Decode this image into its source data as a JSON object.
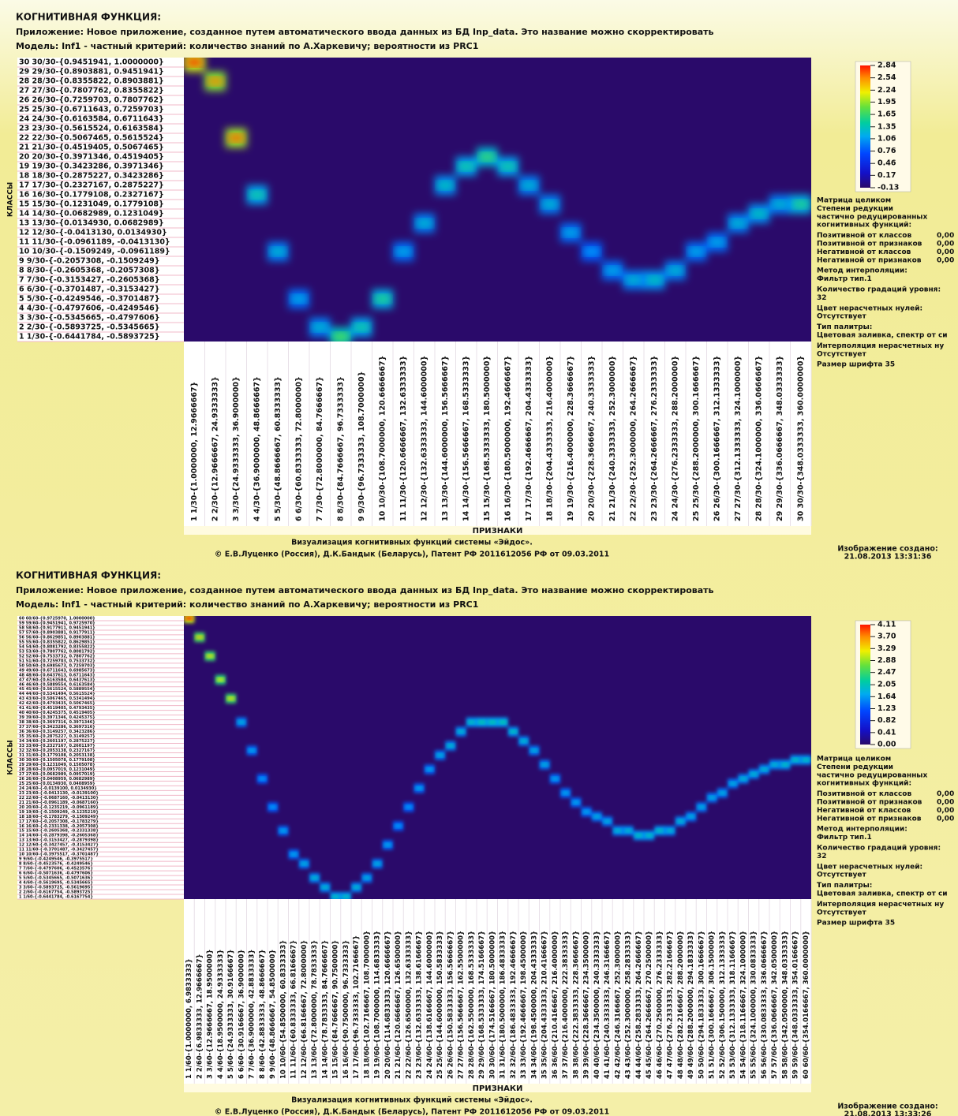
{
  "chart_data": [
    {
      "type": "heatmap",
      "title": "КОГНИТИВНАЯ ФУНКЦИЯ:",
      "subtitle": "Приложение: Новое приложение, созданное путем автоматического ввода данных из БД Inp_data. Это название можно скорректировать",
      "model": "Модель: Inf1 - частный критерий: количество знаний по А.Харкевичу; вероятности из PRC1",
      "y_label": "КЛАССЫ",
      "x_label": "ПРИЗНАКИ",
      "rows": [
        "1 1/30-{-0.6441784, -0.5893725}",
        "2 2/30-{-0.5893725, -0.5345665}",
        "3 3/30-{-0.5345665, -0.4797606}",
        "4 4/30-{-0.4797606, -0.4249546}",
        "5 5/30-{-0.4249546, -0.3701487}",
        "6 6/30-{-0.3701487, -0.3153427}",
        "7 7/30-{-0.3153427, -0.2605368}",
        "8 8/30-{-0.2605368, -0.2057308}",
        "9 9/30-{-0.2057308, -0.1509249}",
        "10 10/30-{-0.1509249, -0.0961189}",
        "11 11/30-{-0.0961189, -0.0413130}",
        "12 12/30-{-0.0413130, 0.0134930}",
        "13 13/30-{0.0134930, 0.0682989}",
        "14 14/30-{0.0682989, 0.1231049}",
        "15 15/30-{0.1231049, 0.1779108}",
        "16 16/30-{0.1779108, 0.2327167}",
        "17 17/30-{0.2327167, 0.2875227}",
        "18 18/30-{0.2875227, 0.3423286}",
        "19 19/30-{0.3423286, 0.3971346}",
        "20 20/30-{0.3971346, 0.4519405}",
        "21 21/30-{0.4519405, 0.5067465}",
        "22 22/30-{0.5067465, 0.5615524}",
        "23 23/30-{0.5615524, 0.6163584}",
        "24 24/30-{0.6163584, 0.6711643}",
        "25 25/30-{0.6711643, 0.7259703}",
        "26 26/30-{0.7259703, 0.7807762}",
        "27 27/30-{0.7807762, 0.8355822}",
        "28 28/30-{0.8355822, 0.8903881}",
        "29 29/30-{0.8903881, 0.9451941}",
        "30 30/30-{0.9451941, 1.0000000}"
      ],
      "columns": [
        "1 1/30-{1.0000000, 12.9666667}",
        "2 2/30-{12.9666667, 24.9333333}",
        "3 3/30-{24.9333333, 36.9000000}",
        "4 4/30-{36.9000000, 48.8666667}",
        "5 5/30-{48.8666667, 60.8333333}",
        "6 6/30-{60.8333333, 72.8000000}",
        "7 7/30-{72.8000000, 84.7666667}",
        "8 8/30-{84.7666667, 96.7333333}",
        "9 9/30-{96.7333333, 108.7000000}",
        "10 10/30-{108.7000000, 120.6666667}",
        "11 11/30-{120.6666667, 132.6333333}",
        "12 12/30-{132.6333333, 144.6000000}",
        "13 13/30-{144.6000000, 156.5666667}",
        "14 14/30-{156.5666667, 168.5333333}",
        "15 15/30-{168.5333333, 180.5000000}",
        "16 16/30-{180.5000000, 192.4666667}",
        "17 17/30-{192.4666667, 204.4333333}",
        "18 18/30-{204.4333333, 216.4000000}",
        "19 19/30-{216.4000000, 228.3666667}",
        "20 20/30-{228.3666667, 240.3333333}",
        "21 21/30-{240.3333333, 252.3000000}",
        "22 22/30-{252.3000000, 264.2666667}",
        "23 23/30-{264.2666667, 276.2333333}",
        "24 24/30-{276.2333333, 288.2000000}",
        "25 25/30-{288.2000000, 300.1666667}",
        "26 26/30-{300.1666667, 312.1333333}",
        "27 27/30-{312.1333333, 324.1000000}",
        "28 28/30-{324.1000000, 336.0666667}",
        "29 29/30-{336.0666667, 348.0333333}",
        "30 30/30-{348.0333333, 360.0000000}"
      ],
      "peak_rows": [
        30,
        28,
        22,
        16,
        10,
        5,
        2,
        1,
        2,
        5,
        10,
        13,
        17,
        19,
        20,
        19,
        17,
        15,
        12,
        10,
        8,
        7,
        7,
        8,
        10,
        11,
        13,
        14,
        15,
        15
      ],
      "values": [
        2.84,
        2.6,
        2.7,
        1.5,
        1.3,
        1.2,
        1.3,
        1.8,
        1.5,
        1.6,
        1.2,
        1.3,
        1.4,
        1.5,
        1.7,
        1.5,
        1.3,
        1.3,
        1.2,
        1.1,
        1.2,
        1.3,
        1.4,
        1.3,
        1.2,
        1.2,
        1.3,
        1.4,
        1.3,
        1.6
      ],
      "clim": [
        -0.13,
        2.84
      ],
      "colorbar_ticks": [
        2.84,
        2.54,
        2.24,
        1.95,
        1.65,
        1.35,
        1.06,
        0.76,
        0.46,
        0.17,
        -0.13
      ],
      "info": [
        "Матрица целиком",
        "Степени редукции",
        "частично редуцированных",
        "когнитивных функций:",
        [
          "Позитивной от классов",
          "0,00"
        ],
        [
          "Позитивной от признаков",
          "0,00"
        ],
        [
          "Негативной от классов",
          "0,00"
        ],
        [
          "Негативной от признаков",
          "0,00"
        ],
        "Метод интерполяции:",
        "Фильтр тип.1",
        "Количество градаций уровня:",
        "32",
        "Цвет нерасчетных нулей:",
        "Отсутствует",
        "Тип палитры:",
        "Цветовая заливка, спектр от си",
        "Интерполяция нерасчетных ну",
        "Отсутствует",
        "Размер шрифта 35"
      ],
      "footer": [
        "Визуализация когнитивных функций системы «Эйдос».",
        "© Е.В.Луценко (Россия), Д.К.Бандык (Беларусь), Патент РФ  2011612056 РФ от 09.03.2011"
      ],
      "created": [
        "Изображение создано:",
        "21.08.2013  13:31:36"
      ]
    },
    {
      "type": "heatmap",
      "title": "КОГНИТИВНАЯ ФУНКЦИЯ:",
      "subtitle": "Приложение: Новое приложение, созданное путем автоматического ввода данных из БД Inp_data. Это название можно скорректировать",
      "model": "Модель: Inf1 - частный критерий: количество знаний по А.Харкевичу; вероятности из PRC1",
      "y_label": "КЛАССЫ",
      "x_label": "ПРИЗНАКИ",
      "rows": [
        "1 1/60-{-0.6441784, -0.6167754}",
        "2 2/60-{-0.6167754, -0.5893725}",
        "3 3/60-{-0.5893725, -0.5619695}",
        "4 4/60-{-0.5619695, -0.5345665}",
        "5 5/60-{-0.5345665, -0.5071636}",
        "6 6/60-{-0.5071636, -0.4797606}",
        "7 7/60-{-0.4797606, -0.4523576}",
        "8 8/60-{-0.4523576, -0.4249546}",
        "9 9/60-{-0.4249546, -0.3975517}",
        "10 10/60-{-0.3975517, -0.3701487}",
        "11 11/60-{-0.3701487, -0.3427457}",
        "12 12/60-{-0.3427457, -0.3153427}",
        "13 13/60-{-0.3153427, -0.2879398}",
        "14 14/60-{-0.2879398, -0.2605368}",
        "15 15/60-{-0.2605368, -0.2331338}",
        "16 16/60-{-0.2331338, -0.2057308}",
        "17 17/60-{-0.2057308, -0.1783279}",
        "18 18/60-{-0.1783279, -0.1509249}",
        "19 19/60-{-0.1509249, -0.1235219}",
        "20 20/60-{-0.1235219, -0.0961189}",
        "21 21/60-{-0.0961189, -0.0687160}",
        "22 22/60-{-0.0687160, -0.0413130}",
        "23 23/60-{-0.0413130, -0.0139100}",
        "24 24/60-{-0.0139100, 0.0134930}",
        "25 25/60-{0.0134930, 0.0408959}",
        "26 26/60-{0.0408959, 0.0682989}",
        "27 27/60-{0.0682989, 0.0957019}",
        "28 28/60-{0.0957019, 0.1231049}",
        "29 29/60-{0.1231049, 0.1505078}",
        "30 30/60-{0.1505078, 0.1779108}",
        "31 31/60-{0.1779108, 0.2053138}",
        "32 32/60-{0.2053138, 0.2327167}",
        "33 33/60-{0.2327167, 0.2601197}",
        "34 34/60-{0.2601197, 0.2875227}",
        "35 35/60-{0.2875227, 0.3149257}",
        "36 36/60-{0.3149257, 0.3423286}",
        "37 37/60-{0.3423286, 0.3697316}",
        "38 38/60-{0.3697316, 0.3971346}",
        "39 39/60-{0.3971346, 0.4245375}",
        "40 40/60-{0.4245375, 0.4519405}",
        "41 41/60-{0.4519405, 0.4793435}",
        "42 42/60-{0.4793435, 0.5067465}",
        "43 43/60-{0.5067465, 0.5341494}",
        "44 44/60-{0.5341494, 0.5615524}",
        "45 45/60-{0.5615524, 0.5889554}",
        "46 46/60-{0.5889554, 0.6163584}",
        "47 47/60-{0.6163584, 0.6437613}",
        "48 48/60-{0.6437613, 0.6711643}",
        "49 49/60-{0.6711643, 0.6985673}",
        "50 50/60-{0.6985673, 0.7259703}",
        "51 51/60-{0.7259703, 0.7533732}",
        "52 52/60-{0.7533732, 0.7807762}",
        "53 53/60-{0.7807762, 0.8081792}",
        "54 54/60-{0.8081792, 0.8355822}",
        "55 55/60-{0.8355822, 0.8629851}",
        "56 56/60-{0.8629851, 0.8903881}",
        "57 57/60-{0.8903881, 0.9177911}",
        "58 58/60-{0.9177911, 0.9451941}",
        "59 59/60-{0.9451941, 0.9725970}",
        "60 60/60-{0.9725970, 1.0000000}"
      ],
      "columns": [
        "1 1/60-{1.0000000, 6.9833333}",
        "2 2/60-{6.9833333, 12.9666667}",
        "3 3/60-{12.9666667, 18.9500000}",
        "4 4/60-{18.9500000, 24.9333333}",
        "5 5/60-{24.9333333, 30.9166667}",
        "6 6/60-{30.9166667, 36.9000000}",
        "7 7/60-{36.9000000, 42.8833333}",
        "8 8/60-{42.8833333, 48.8666667}",
        "9 9/60-{48.8666667, 54.8500000}",
        "10 10/60-{54.8500000, 60.8333333}",
        "11 11/60-{60.8333333, 66.8166667}",
        "12 12/60-{66.8166667, 72.8000000}",
        "13 13/60-{72.8000000, 78.7833333}",
        "14 14/60-{78.7833333, 84.7666667}",
        "15 15/60-{84.7666667, 90.7500000}",
        "16 16/60-{90.7500000, 96.7333333}",
        "17 17/60-{96.7333333, 102.7166667}",
        "18 18/60-{102.7166667, 108.7000000}",
        "19 19/60-{108.7000000, 114.6833333}",
        "20 20/60-{114.6833333, 120.6666667}",
        "21 21/60-{120.6666667, 126.6500000}",
        "22 22/60-{126.6500000, 132.6333333}",
        "23 23/60-{132.6333333, 138.6166667}",
        "24 24/60-{138.6166667, 144.6000000}",
        "25 25/60-{144.6000000, 150.5833333}",
        "26 26/60-{150.5833333, 156.5666667}",
        "27 27/60-{156.5666667, 162.5500000}",
        "28 28/60-{162.5500000, 168.5333333}",
        "29 29/60-{168.5333333, 174.5166667}",
        "30 30/60-{174.5166667, 180.5000000}",
        "31 31/60-{180.5000000, 186.4833333}",
        "32 32/60-{186.4833333, 192.4666667}",
        "33 33/60-{192.4666667, 198.4500000}",
        "34 34/60-{198.4500000, 204.4333333}",
        "35 35/60-{204.4333333, 210.4166667}",
        "36 36/60-{210.4166667, 216.4000000}",
        "37 37/60-{216.4000000, 222.3833333}",
        "38 38/60-{222.3833333, 228.3666667}",
        "39 39/60-{228.3666667, 234.3500000}",
        "40 40/60-{234.3500000, 240.3333333}",
        "41 41/60-{240.3333333, 246.3166667}",
        "42 42/60-{246.3166667, 252.3000000}",
        "43 43/60-{252.3000000, 258.2833333}",
        "44 44/60-{258.2833333, 264.2666667}",
        "45 45/60-{264.2666667, 270.2500000}",
        "46 46/60-{270.2500000, 276.2333333}",
        "47 47/60-{276.2333333, 282.2166667}",
        "48 48/60-{282.2166667, 288.2000000}",
        "49 49/60-{288.2000000, 294.1833333}",
        "50 50/60-{294.1833333, 300.1666667}",
        "51 51/60-{300.1666667, 306.1500000}",
        "52 52/60-{306.1500000, 312.1333333}",
        "53 53/60-{312.1333333, 318.1166667}",
        "54 54/60-{318.1166667, 324.1000000}",
        "55 55/60-{324.1000000, 330.0833333}",
        "56 56/60-{330.0833333, 336.0666667}",
        "57 57/60-{336.0666667, 342.0500000}",
        "58 58/60-{342.0500000, 348.0333333}",
        "59 59/60-{348.0333333, 354.0166667}",
        "60 60/60-{354.0166667, 360.0000000}"
      ],
      "peak_rows": [
        60,
        56,
        52,
        47,
        43,
        38,
        32,
        26,
        20,
        15,
        10,
        8,
        5,
        3,
        1,
        1,
        3,
        5,
        8,
        12,
        16,
        20,
        24,
        28,
        31,
        33,
        36,
        38,
        38,
        38,
        38,
        36,
        34,
        32,
        29,
        26,
        23,
        21,
        19,
        18,
        17,
        15,
        15,
        14,
        14,
        15,
        15,
        17,
        18,
        20,
        22,
        23,
        25,
        26,
        27,
        28,
        29,
        29,
        30,
        30
      ],
      "values": [
        4.11,
        3.4,
        3.3,
        3.2,
        3.3,
        1.9,
        1.8,
        1.7,
        1.7,
        1.8,
        1.8,
        1.9,
        2.0,
        2.0,
        2.1,
        2.1,
        2.0,
        1.9,
        1.9,
        1.8,
        1.7,
        1.7,
        1.8,
        1.8,
        1.9,
        2.0,
        2.0,
        2.1,
        2.2,
        2.2,
        2.2,
        2.1,
        2.0,
        1.9,
        1.9,
        1.8,
        1.8,
        1.8,
        1.8,
        1.9,
        1.9,
        2.0,
        2.0,
        2.1,
        2.1,
        2.1,
        2.0,
        2.0,
        1.9,
        1.9,
        1.9,
        1.9,
        1.9,
        2.0,
        2.0,
        2.0,
        2.0,
        2.1,
        2.1,
        2.1
      ],
      "clim": [
        0,
        4.11
      ],
      "colorbar_ticks": [
        4.11,
        {
          "value": 3.7,
          "label": "3.70"
        },
        3.29,
        2.88,
        2.47,
        2.05,
        1.64,
        1.23,
        0.82,
        0.41,
        {
          "value": 0,
          "label": "0.00"
        }
      ],
      "info": [
        "Матрица целиком",
        "Степени редукции",
        "частично редуцированных",
        "когнитивных функций:",
        [
          "Позитивной от классов",
          "0,00"
        ],
        [
          "Позитивной от признаков",
          "0,00"
        ],
        [
          "Негативной от классов",
          "0,00"
        ],
        [
          "Негативной от признаков",
          "0,00"
        ],
        "Метод интерполяции:",
        "Фильтр тип.1",
        "Количество градаций уровня:",
        "32",
        "Цвет нерасчетных нулей:",
        "Отсутствует",
        "Тип палитры:",
        "Цветовая заливка, спектр от си",
        "Интерполяция нерасчетных ну",
        "Отсутствует",
        "Размер шрифта 35"
      ],
      "footer": [
        "Визуализация когнитивных функций системы «Эйдос».",
        "© Е.В.Луценко (Россия), Д.К.Бандык (Беларусь), Патент РФ  2011612056 РФ от 09.03.2011"
      ],
      "created": [
        "Изображение создано:",
        "21.08.2013  13:33:26"
      ]
    }
  ]
}
